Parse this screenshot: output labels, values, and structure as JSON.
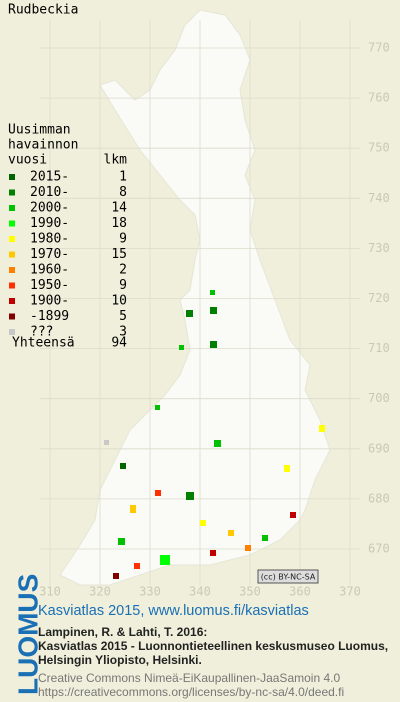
{
  "title": "Rudbeckia",
  "legend": {
    "heading": [
      "Uusimman",
      "havainnon"
    ],
    "column_headers": [
      "vuosi",
      "lkm"
    ],
    "rows": [
      {
        "label": "2015-",
        "count": 1,
        "color": "#006400"
      },
      {
        "label": "2010-",
        "count": 8,
        "color": "#008000"
      },
      {
        "label": "2000-",
        "count": 14,
        "color": "#00c000"
      },
      {
        "label": "1990-",
        "count": 18,
        "color": "#00ff00"
      },
      {
        "label": "1980-",
        "count": 9,
        "color": "#ffff00"
      },
      {
        "label": "1970-",
        "count": 15,
        "color": "#ffc800"
      },
      {
        "label": "1960-",
        "count": 2,
        "color": "#ff8000"
      },
      {
        "label": "1950-",
        "count": 9,
        "color": "#ff3000"
      },
      {
        "label": "1900-",
        "count": 10,
        "color": "#c00000"
      },
      {
        "label": "-1899",
        "count": 5,
        "color": "#800000"
      },
      {
        "label": "???",
        "count": 3,
        "color": "#c8c8c8"
      }
    ],
    "total": {
      "label": "Yhteensä",
      "count": 94
    }
  },
  "y_axis_labels": [
    770,
    760,
    750,
    740,
    730,
    720,
    710,
    700,
    690,
    680,
    670
  ],
  "x_axis_labels": [
    310,
    320,
    330,
    340,
    350,
    360,
    370
  ],
  "license_badge": "(cc) BY-NC-SA",
  "footer": {
    "logo": "LUOMUS",
    "headline": "Kasviatlas 2015, www.luomus.fi/kasviatlas",
    "citation": [
      "Lampinen, R. & Lahti, T. 2016:",
      "Kasviatlas 2015 - Luonnontieteellinen keskusmuseo Luomus,",
      "Helsingin Yliopisto, Helsinki."
    ],
    "license": [
      "Creative Commons Nimeä-EiKaupallinen-JaaSamoin 4.0",
      "https://creativecommons.org/licenses/by-nc-sa/4.0/deed.fi"
    ]
  }
}
